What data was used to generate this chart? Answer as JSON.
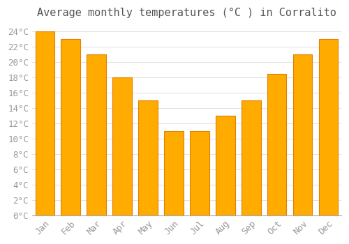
{
  "title": "Average monthly temperatures (°C ) in Corralito",
  "months": [
    "Jan",
    "Feb",
    "Mar",
    "Apr",
    "May",
    "Jun",
    "Jul",
    "Aug",
    "Sep",
    "Oct",
    "Nov",
    "Dec"
  ],
  "values": [
    24,
    23,
    21,
    18,
    15,
    11,
    11,
    13,
    15,
    18.5,
    21,
    23
  ],
  "bar_color": "#FFAB00",
  "bar_edge_color": "#E08000",
  "background_color": "#FFFFFF",
  "plot_bg_color": "#FFFFFF",
  "grid_color": "#E0E0E0",
  "text_color": "#999999",
  "title_color": "#555555",
  "ylim": [
    0,
    25
  ],
  "ytick_max": 25,
  "ytick_step": 2,
  "title_fontsize": 11,
  "tick_fontsize": 9
}
